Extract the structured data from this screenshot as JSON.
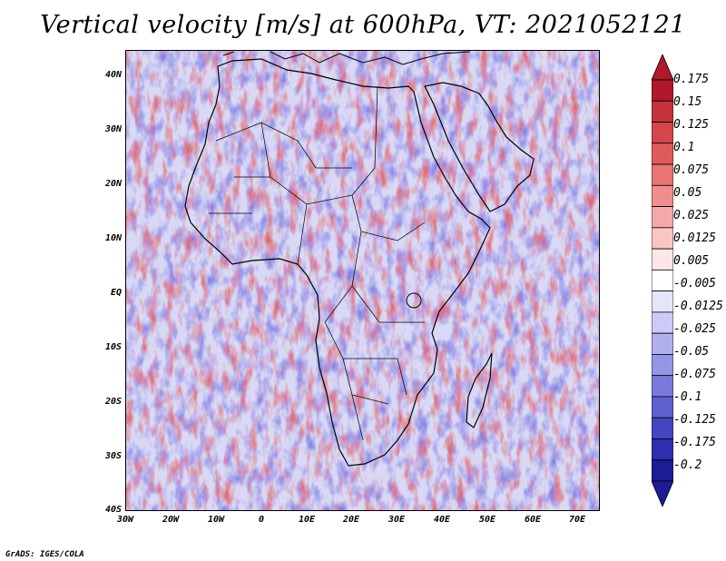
{
  "title": "Vertical velocity [m/s] at 600hPa, VT: 2021052121",
  "credit": "GrADS: IGES/COLA",
  "map": {
    "lat_labels": [
      "40N",
      "30N",
      "20N",
      "10N",
      "EQ",
      "10S",
      "20S",
      "30S",
      "40S"
    ],
    "lon_labels": [
      "30W",
      "20W",
      "10W",
      "0",
      "10E",
      "20E",
      "30E",
      "40E",
      "50E",
      "60E",
      "70E"
    ]
  },
  "colorbar": {
    "labels": [
      "0.175",
      "0.15",
      "0.125",
      "0.1",
      "0.075",
      "0.05",
      "0.025",
      "0.0125",
      "0.005",
      "-0.005",
      "-0.0125",
      "-0.025",
      "-0.05",
      "-0.075",
      "-0.1",
      "-0.125",
      "-0.175",
      "-0.2"
    ],
    "colors": [
      "#b2182b",
      "#c6323a",
      "#d6454a",
      "#e05c5c",
      "#e97474",
      "#f08e8e",
      "#f5a8a8",
      "#f9c6c6",
      "#fde6e6",
      "#ffffff",
      "#e6e6fa",
      "#cbcbf5",
      "#b0b0ee",
      "#9595e6",
      "#7a7adc",
      "#5f5fd0",
      "#4545c2",
      "#2e2eae",
      "#1c1c96"
    ]
  }
}
